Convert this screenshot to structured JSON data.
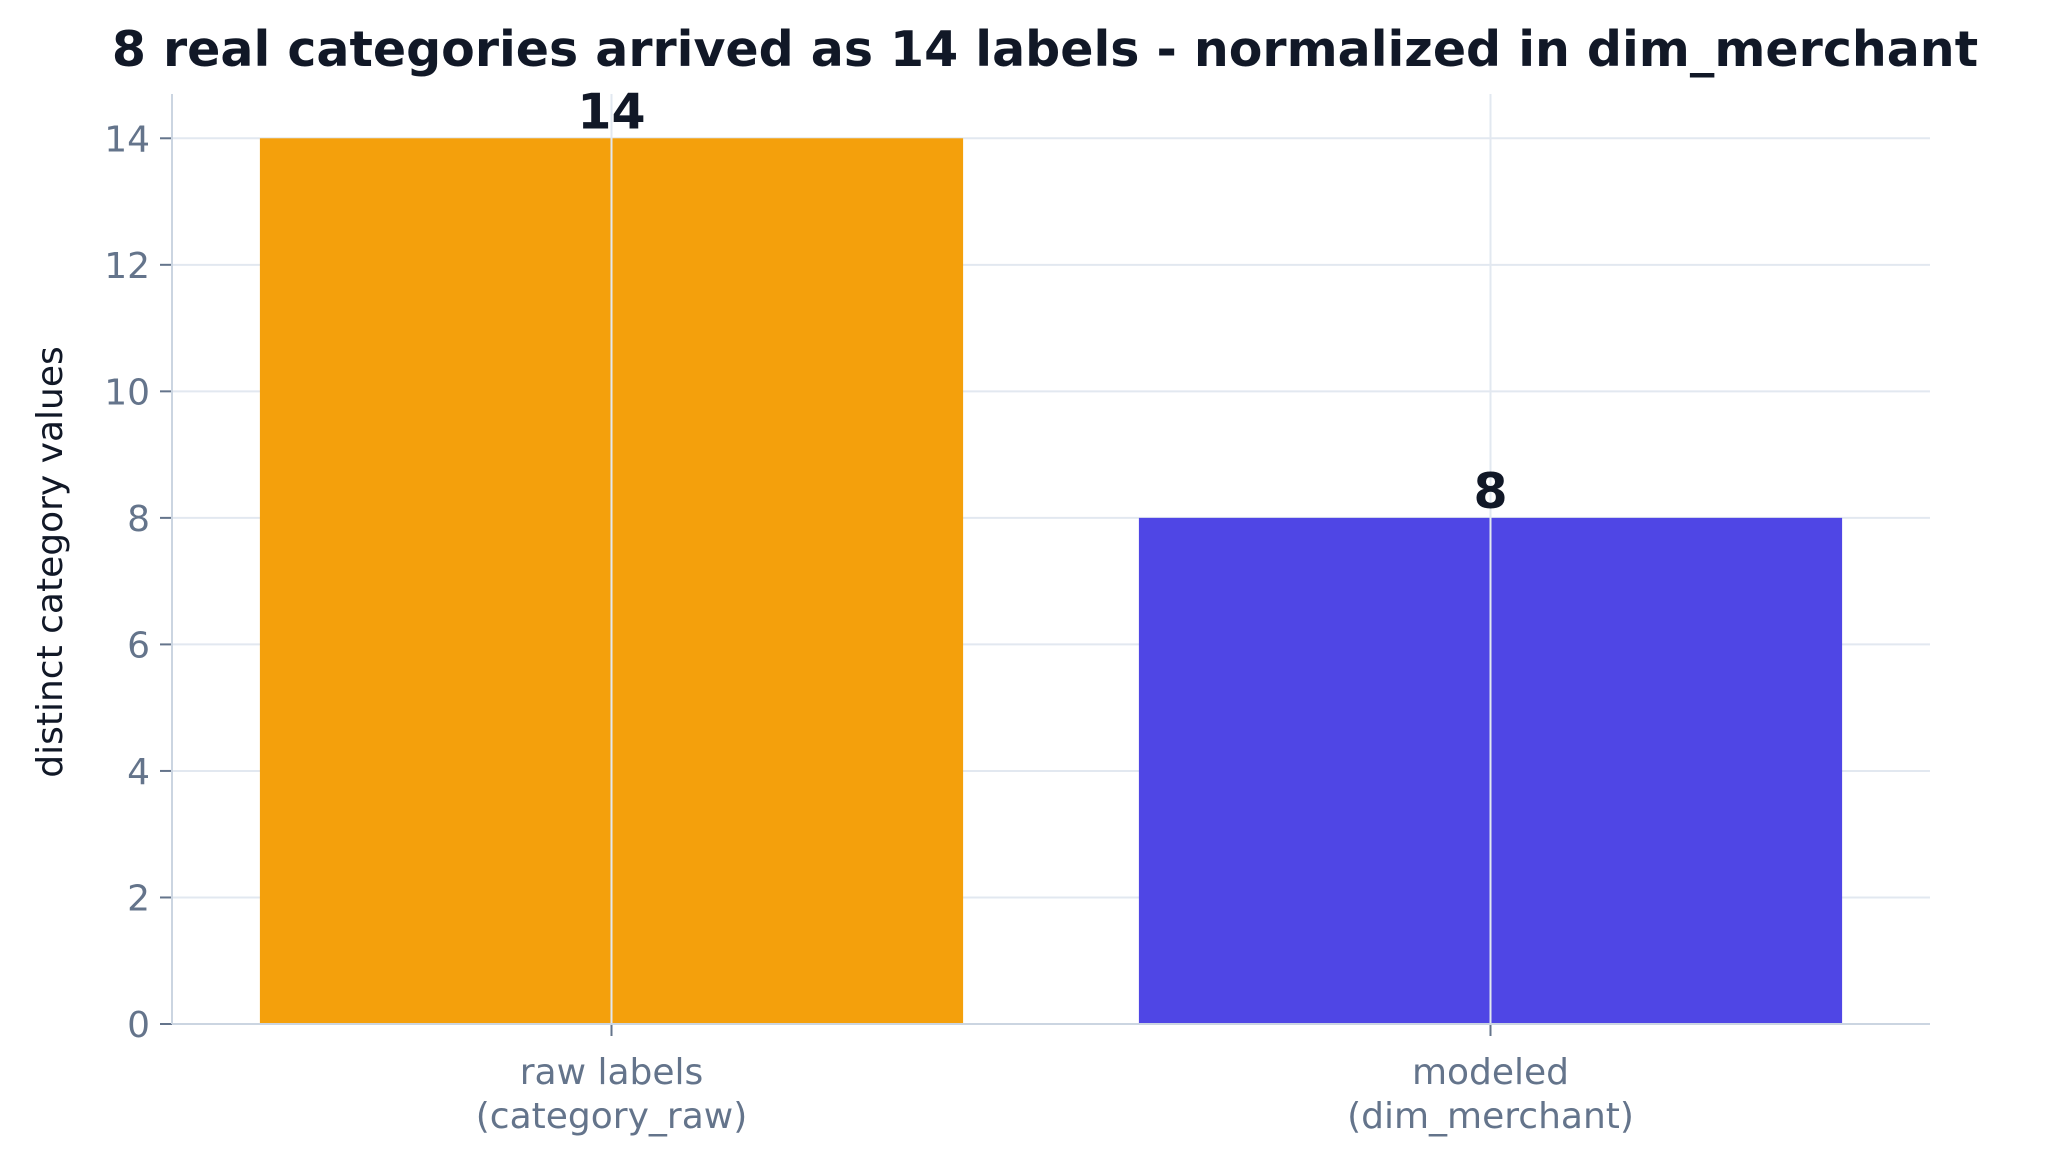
{
  "chart_data": {
    "type": "bar",
    "title": "8 real categories arrived as 14 labels - normalized in dim_merchant",
    "xlabel": "",
    "ylabel": "distinct category values",
    "categories": [
      [
        "raw labels",
        "(category_raw)"
      ],
      [
        "modeled",
        "(dim_merchant)"
      ]
    ],
    "values": [
      14,
      8
    ],
    "value_labels": [
      "14",
      "8"
    ],
    "colors": [
      "#f4a00c",
      "#4f46e5"
    ],
    "ylim": [
      0,
      14.7
    ],
    "yticks": [
      0,
      2,
      4,
      6,
      8,
      10,
      12,
      14
    ],
    "grid": true,
    "grid_color": "#e2e8f0",
    "tick_label_color": "#64748b",
    "text_color": "#111827",
    "legend": "none"
  }
}
